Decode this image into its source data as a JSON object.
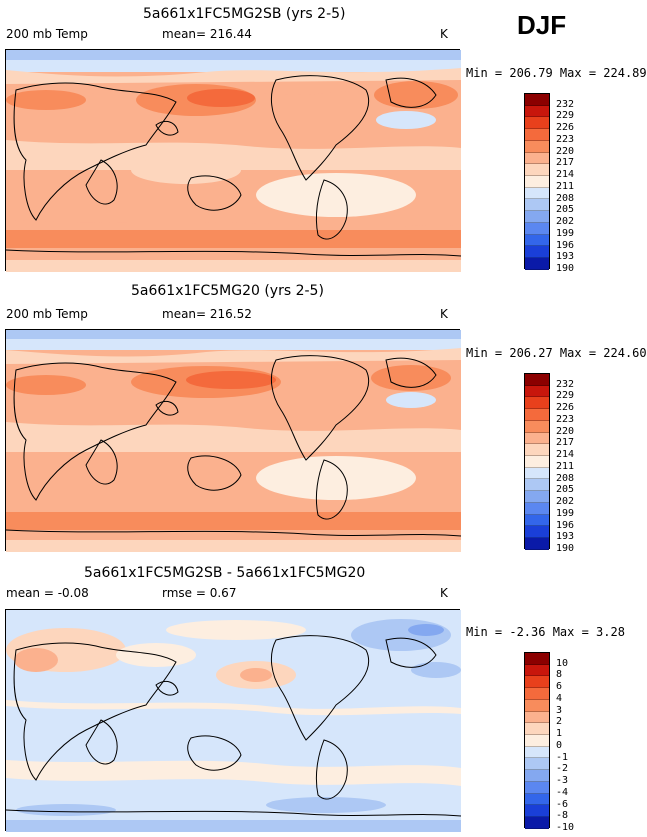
{
  "season": "DJF",
  "panels": [
    {
      "title": "5a661x1FC5MG2SB (yrs 2-5)",
      "left_label": "200 mb Temp",
      "mid_label": "mean= 216.44",
      "units": "K",
      "minmax": "Min = 206.79 Max = 224.89",
      "scale": [
        "232",
        "229",
        "226",
        "223",
        "220",
        "217",
        "214",
        "211",
        "208",
        "205",
        "202",
        "199",
        "196",
        "193",
        "190"
      ]
    },
    {
      "title": "5a661x1FC5MG20 (yrs 2-5)",
      "left_label": "200 mb Temp",
      "mid_label": "mean= 216.52",
      "units": "K",
      "minmax": "Min = 206.27 Max = 224.60",
      "scale": [
        "232",
        "229",
        "226",
        "223",
        "220",
        "217",
        "214",
        "211",
        "208",
        "205",
        "202",
        "199",
        "196",
        "193",
        "190"
      ]
    },
    {
      "title": "5a661x1FC5MG2SB - 5a661x1FC5MG20",
      "left_label": "mean =  -0.08",
      "mid_label": "rmse =   0.67",
      "units": "K",
      "minmax": "Min =  -2.36 Max =   3.28",
      "scale": [
        "10",
        "8",
        "6",
        "4",
        "3",
        "2",
        "1",
        "0",
        "-1",
        "-2",
        "-3",
        "-4",
        "-6",
        "-8",
        "-10"
      ]
    }
  ],
  "colors": {
    "colorbar": [
      "#8b0000",
      "#c8160c",
      "#e8401c",
      "#f46a3c",
      "#f88c5c",
      "#fbb18e",
      "#fdd6bd",
      "#fdeee0",
      "#d6e6fb",
      "#adc8f4",
      "#84a8f0",
      "#5b87f0",
      "#3366ea",
      "#1a3fd8",
      "#0a1aa8"
    ],
    "ocean_base": "#fdd6bd",
    "warm": "#fbb18e",
    "warmer": "#f88c5c",
    "hot": "#f46a3c",
    "cool": "#d6e6fb",
    "cooler": "#adc8f4",
    "pale": "#fdeee0"
  }
}
